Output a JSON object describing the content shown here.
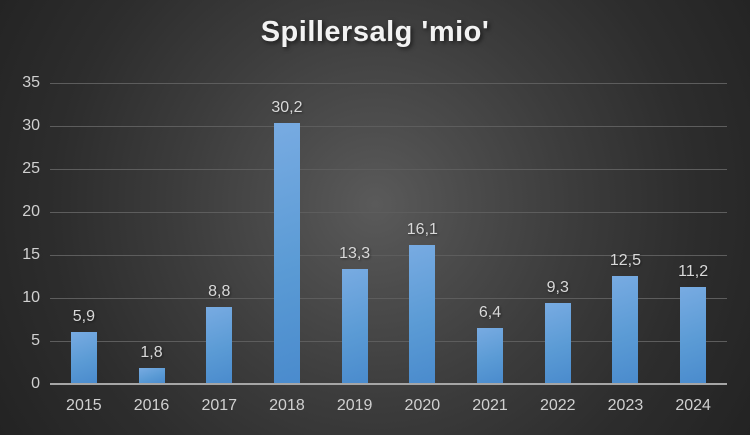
{
  "title": "Spillersalg 'mio'",
  "chart_data": {
    "type": "bar",
    "title": "Spillersalg 'mio'",
    "categories": [
      "2015",
      "2016",
      "2017",
      "2018",
      "2019",
      "2020",
      "2021",
      "2022",
      "2023",
      "2024"
    ],
    "values": [
      5.9,
      1.8,
      8.8,
      30.2,
      13.3,
      16.1,
      6.4,
      9.3,
      12.5,
      11.2
    ],
    "value_labels": [
      "5,9",
      "1,8",
      "8,8",
      "30,2",
      "13,3",
      "16,1",
      "6,4",
      "9,3",
      "12,5",
      "11,2"
    ],
    "xlabel": "",
    "ylabel": "",
    "ylim": [
      0,
      35
    ],
    "yticks": [
      0,
      5,
      10,
      15,
      20,
      25,
      30,
      35
    ],
    "decimal_separator": ",",
    "grid": "horizontal",
    "legend": "none",
    "colors": {
      "bar_top": "#78abe2",
      "bar": "#5b9bd5",
      "bar_bottom": "#4a8bcd",
      "axis_line": "#a6a6a6",
      "gridline": "#5d5d5d",
      "tick_label": "#d0d0d0",
      "data_label": "#d9d9d9",
      "title_text": "#f2f2f2",
      "background_center": "#5a5a5a",
      "background_edge": "#232323"
    }
  }
}
